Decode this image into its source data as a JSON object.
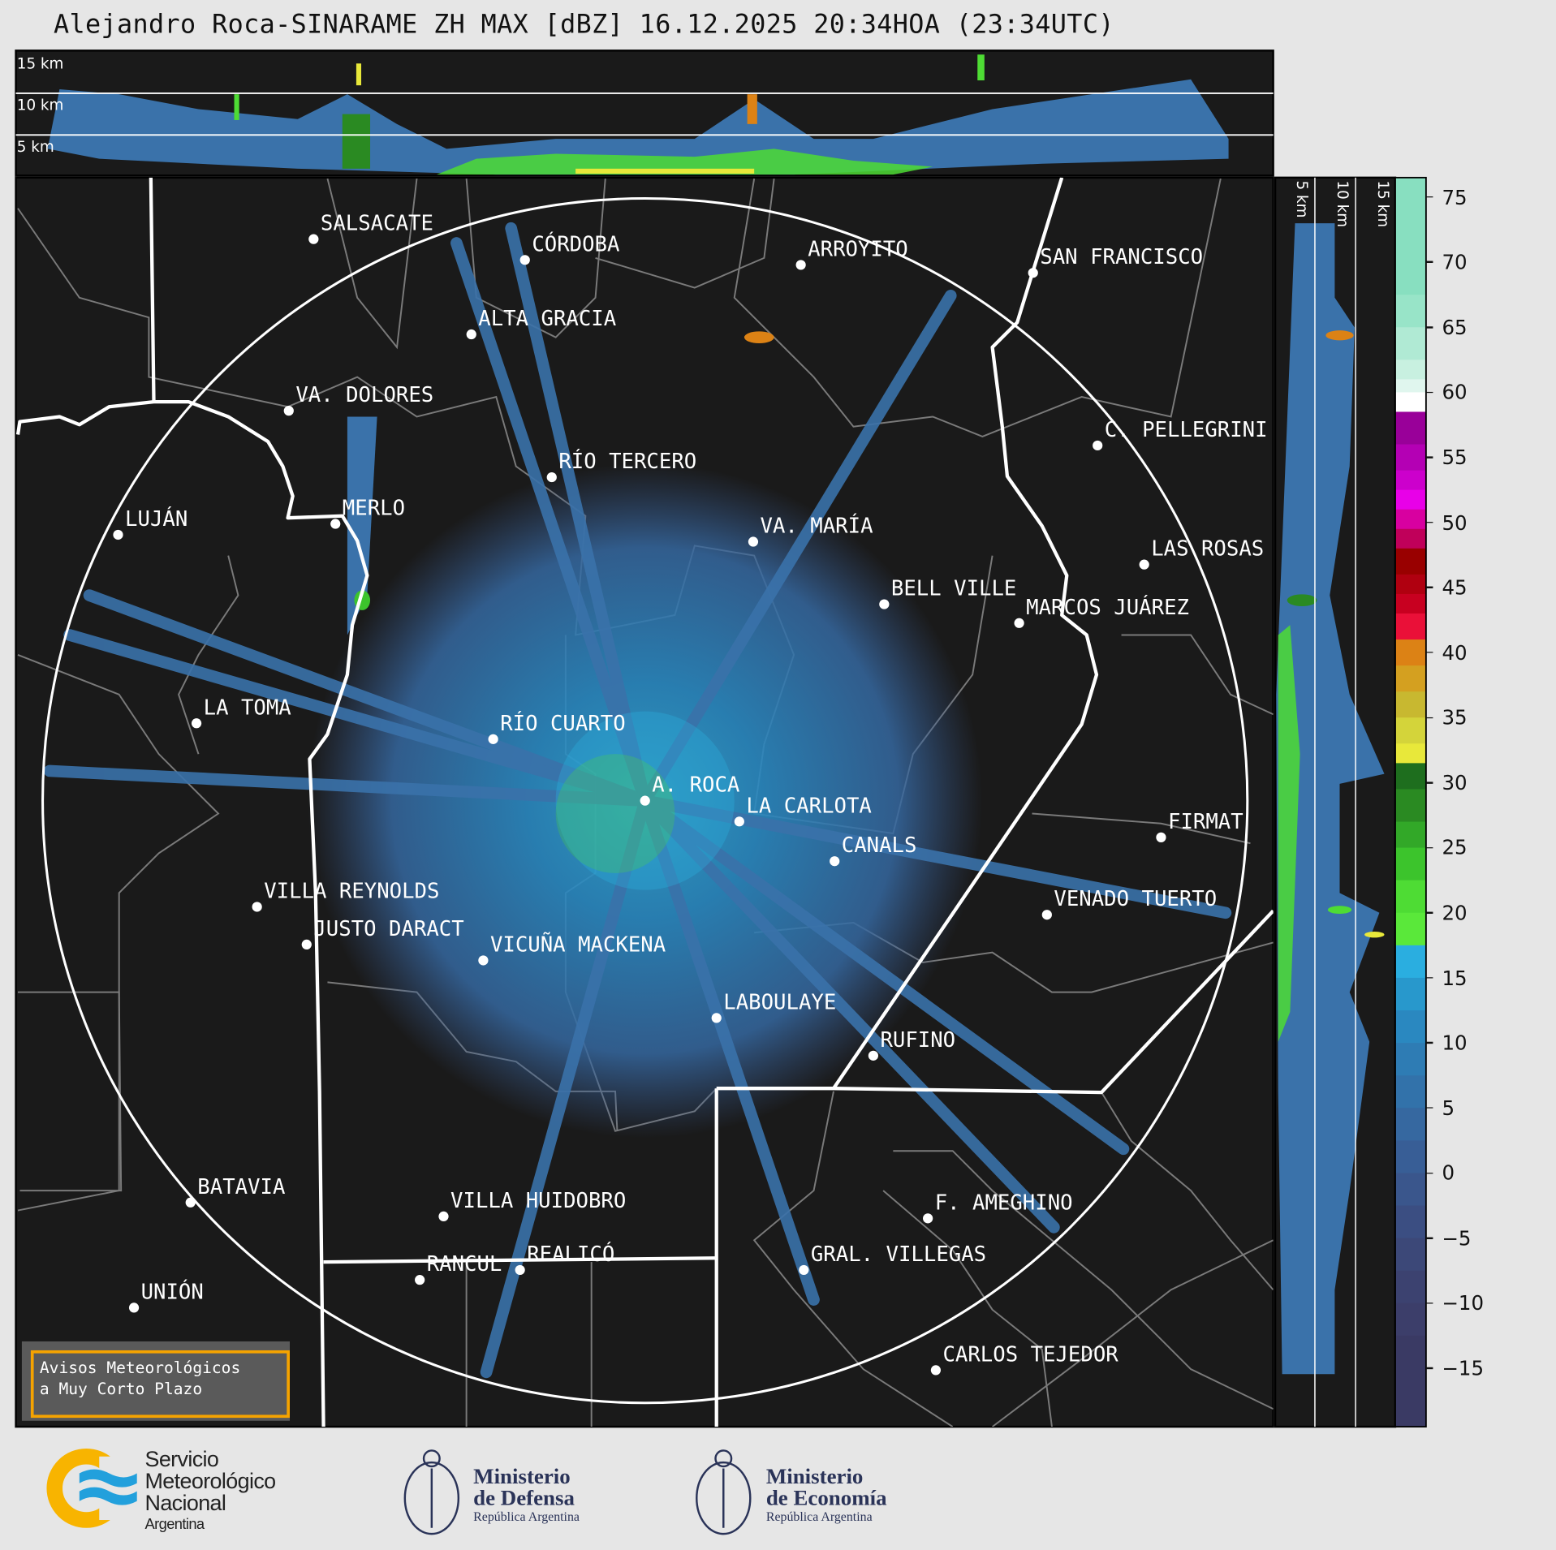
{
  "title": "Alejandro Roca-SINARAME ZH MAX [dBZ] 16.12.2025 20:34HOA (23:34UTC)",
  "top_panel": {
    "height_labels": [
      "15 km",
      "10 km",
      "5 km"
    ]
  },
  "side_panel": {
    "height_labels": [
      "5 km",
      "10 km",
      "15 km"
    ]
  },
  "colorbar": {
    "unit": "dBZ",
    "ticks": [
      "75",
      "70",
      "65",
      "60",
      "55",
      "50",
      "45",
      "40",
      "35",
      "30",
      "25",
      "20",
      "15",
      "10",
      "5",
      "0",
      "−5",
      "−10",
      "−15"
    ],
    "range": [
      -19.5,
      76.5
    ],
    "colors": [
      {
        "from": 67.5,
        "color": "#88dfc0"
      },
      {
        "from": 65,
        "color": "#98e4c8"
      },
      {
        "from": 62.5,
        "color": "#b0ead4"
      },
      {
        "from": 61,
        "color": "#c8f0e0"
      },
      {
        "from": 60,
        "color": "#e0f6ee"
      },
      {
        "from": 58.5,
        "color": "#ffffff"
      },
      {
        "from": 56,
        "color": "#990099"
      },
      {
        "from": 54,
        "color": "#b400b4"
      },
      {
        "from": 52.5,
        "color": "#cc00cc"
      },
      {
        "from": 51,
        "color": "#e800e8"
      },
      {
        "from": 49.5,
        "color": "#d800a0"
      },
      {
        "from": 48,
        "color": "#c0005a"
      },
      {
        "from": 46,
        "color": "#990000"
      },
      {
        "from": 44.5,
        "color": "#b00010"
      },
      {
        "from": 43,
        "color": "#c80020"
      },
      {
        "from": 41,
        "color": "#ea1038"
      },
      {
        "from": 39,
        "color": "#dc8215"
      },
      {
        "from": 37,
        "color": "#d4a020"
      },
      {
        "from": 35,
        "color": "#c8b830"
      },
      {
        "from": 33,
        "color": "#d4d43a"
      },
      {
        "from": 31.5,
        "color": "#e8e83a"
      },
      {
        "from": 29.5,
        "color": "#1e6e1e"
      },
      {
        "from": 27,
        "color": "#2a8a22"
      },
      {
        "from": 25,
        "color": "#32a828"
      },
      {
        "from": 22.5,
        "color": "#3cc42c"
      },
      {
        "from": 20,
        "color": "#4edc34"
      },
      {
        "from": 17.5,
        "color": "#5ae83a"
      },
      {
        "from": 15,
        "color": "#2aaee0"
      },
      {
        "from": 12.5,
        "color": "#2898cc"
      },
      {
        "from": 10,
        "color": "#2a88c0"
      },
      {
        "from": 7.5,
        "color": "#2e7cb4"
      },
      {
        "from": 5,
        "color": "#3272aa"
      },
      {
        "from": 2.5,
        "color": "#3668a0"
      },
      {
        "from": 0,
        "color": "#385e96"
      },
      {
        "from": -2.5,
        "color": "#3a568c"
      },
      {
        "from": -5,
        "color": "#3b4e82"
      },
      {
        "from": -7.5,
        "color": "#3c4878"
      },
      {
        "from": -10,
        "color": "#3c4270"
      },
      {
        "from": -12.5,
        "color": "#3c3e6a"
      },
      {
        "from": -19.5,
        "color": "#3a3a64"
      }
    ]
  },
  "radar": {
    "name": "A. ROCA"
  },
  "cities": [
    "SALSACATE",
    "CÓRDOBA",
    "ARROYITO",
    "SAN FRANCISCO",
    "ALTA GRACIA",
    "VA. DOLORES",
    "C. PELLEGRINI",
    "RÍO TERCERO",
    "MERLO",
    "LUJÁN",
    "VA. MARÍA",
    "LAS ROSAS",
    "BELL VILLE",
    "MARCOS JUÁREZ",
    "LA TOMA",
    "RÍO CUARTO",
    "A. ROCA",
    "LA CARLOTA",
    "FIRMAT",
    "CANALS",
    "VILLA REYNOLDS",
    "VENADO TUERTO",
    "JUSTO DARACT",
    "VICUÑA MACKENA",
    "LABOULAYE",
    "RUFINO",
    "BATAVIA",
    "VILLA HUIDOBRO",
    "F. AMEGHINO",
    "GRAL. VILLEGAS",
    "RANCUL",
    "REALICÓ",
    "UNIÓN",
    "CARLOS TEJEDOR"
  ],
  "warning_box": {
    "line1": "Avisos Meteorológicos",
    "line2": "a Muy Corto Plazo",
    "border_color": "#f5a300"
  },
  "logos": {
    "smn": {
      "line1": "Servicio",
      "line2": "Meteorológico",
      "line3": "Nacional",
      "line4": "Argentina"
    },
    "defensa": {
      "line1": "Ministerio",
      "line2": "de Defensa",
      "line3": "República Argentina"
    },
    "economia": {
      "line1": "Ministerio",
      "line2": "de Economía",
      "line3": "República Argentina"
    }
  },
  "colors": {
    "background": "#e6e6e6",
    "map_bg": "#1a1a1a",
    "province_border": "#ffffff",
    "department_border": "#7a7a7a",
    "echo": "#3a72aa"
  }
}
